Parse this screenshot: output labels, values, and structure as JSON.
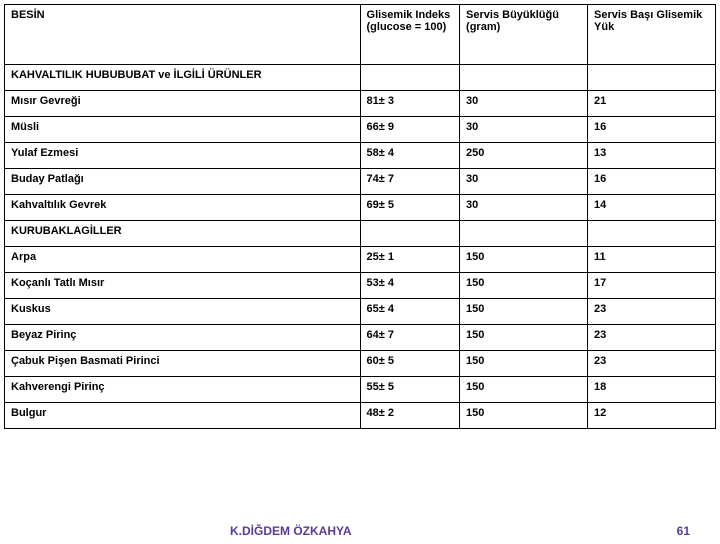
{
  "table": {
    "columns": [
      "BESİN",
      "Glisemik Indeks (glucose = 100)",
      "Servis Büyüklüğü (gram)",
      "Servis Başı Glisemik Yük"
    ],
    "sections": [
      {
        "title": "KAHVALTILIK HUBUBUBAT ve İLGİLİ ÜRÜNLER",
        "rows": [
          [
            "Mısır Gevreği",
            "81± 3",
            "30",
            "21"
          ],
          [
            "Müsli",
            "66± 9",
            "30",
            "16"
          ],
          [
            "Yulaf Ezmesi",
            "58± 4",
            "250",
            "13"
          ],
          [
            "Buday Patlağı",
            "74± 7",
            "30",
            "16"
          ],
          [
            "Kahvaltılık Gevrek",
            "69± 5",
            "30",
            "14"
          ]
        ]
      },
      {
        "title": "KURUBAKLAGİLLER",
        "rows": [
          [
            "Arpa",
            "25± 1",
            "150",
            "11"
          ],
          [
            "Koçanlı Tatlı Mısır",
            "53± 4",
            "150",
            "17"
          ],
          [
            "Kuskus",
            "65± 4",
            "150",
            "23"
          ],
          [
            "Beyaz Pirinç",
            "64± 7",
            "150",
            "23"
          ],
          [
            "Çabuk Pişen Basmati Pirinci",
            "60± 5",
            "150",
            "23"
          ],
          [
            "Kahverengi Pirinç",
            "55± 5",
            "150",
            "18"
          ],
          [
            "Bulgur",
            "48± 2",
            "150",
            "12"
          ]
        ]
      }
    ]
  },
  "footer": {
    "author": "K.DİĞDEM ÖZKAHYA",
    "page": "61"
  },
  "style": {
    "border_color": "#000000",
    "text_color": "#000000",
    "footer_color": "#5a3b94",
    "background": "#ffffff",
    "font_family": "Arial, sans-serif",
    "base_fontsize": 11,
    "footer_fontsize": 12
  }
}
